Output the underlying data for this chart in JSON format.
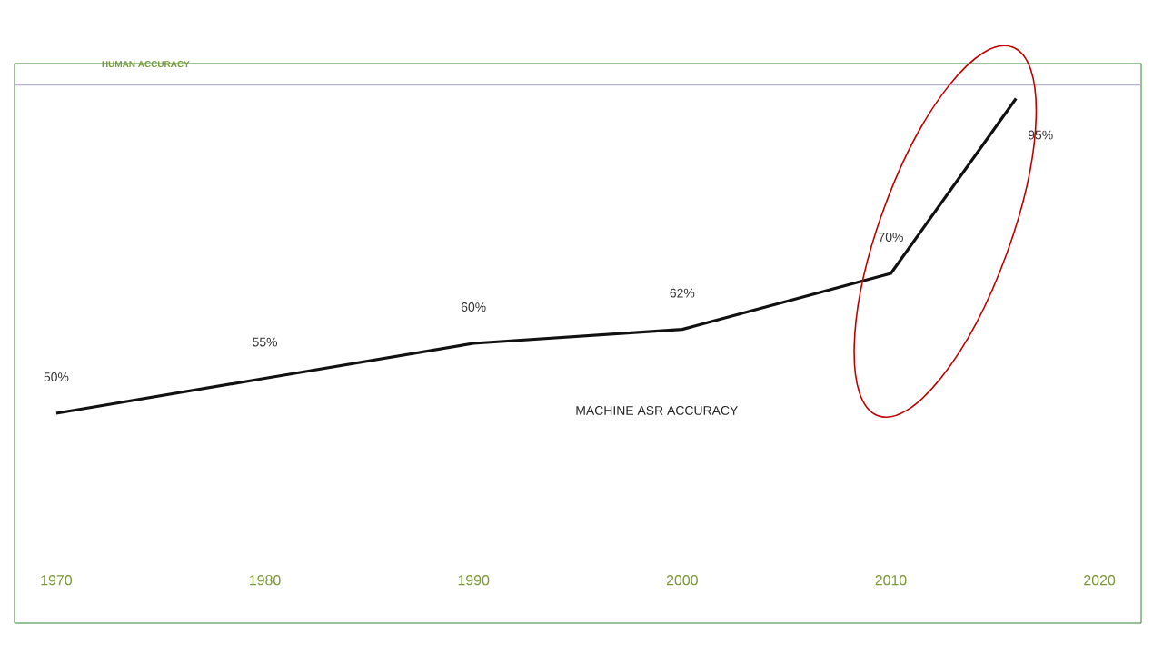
{
  "chart_data": {
    "type": "line",
    "ylim": [
      20,
      100
    ],
    "series": [
      {
        "color": "#111111",
        "x": [
          1970,
          1980,
          1990,
          2000,
          2010,
          2016
        ],
        "values": [
          50,
          55,
          60,
          62,
          70,
          95
        ],
        "value_labels": [
          "50%",
          "55%",
          "60%",
          "62%",
          "70%",
          "95%"
        ]
      }
    ],
    "xlim": [
      1968,
      2022
    ],
    "xticks": [
      1970,
      1980,
      1990,
      2000,
      2010,
      2020
    ],
    "tick_labels": "x",
    "grid": false,
    "marker": "none",
    "line_style": "solid",
    "ref_lines": [
      {
        "axis": "y",
        "value": 97,
        "label": "HUMAN ACCURACY",
        "color": "#b4b4c8"
      }
    ],
    "annotations": [
      "MACHINE ASR ACCURACY"
    ]
  }
}
